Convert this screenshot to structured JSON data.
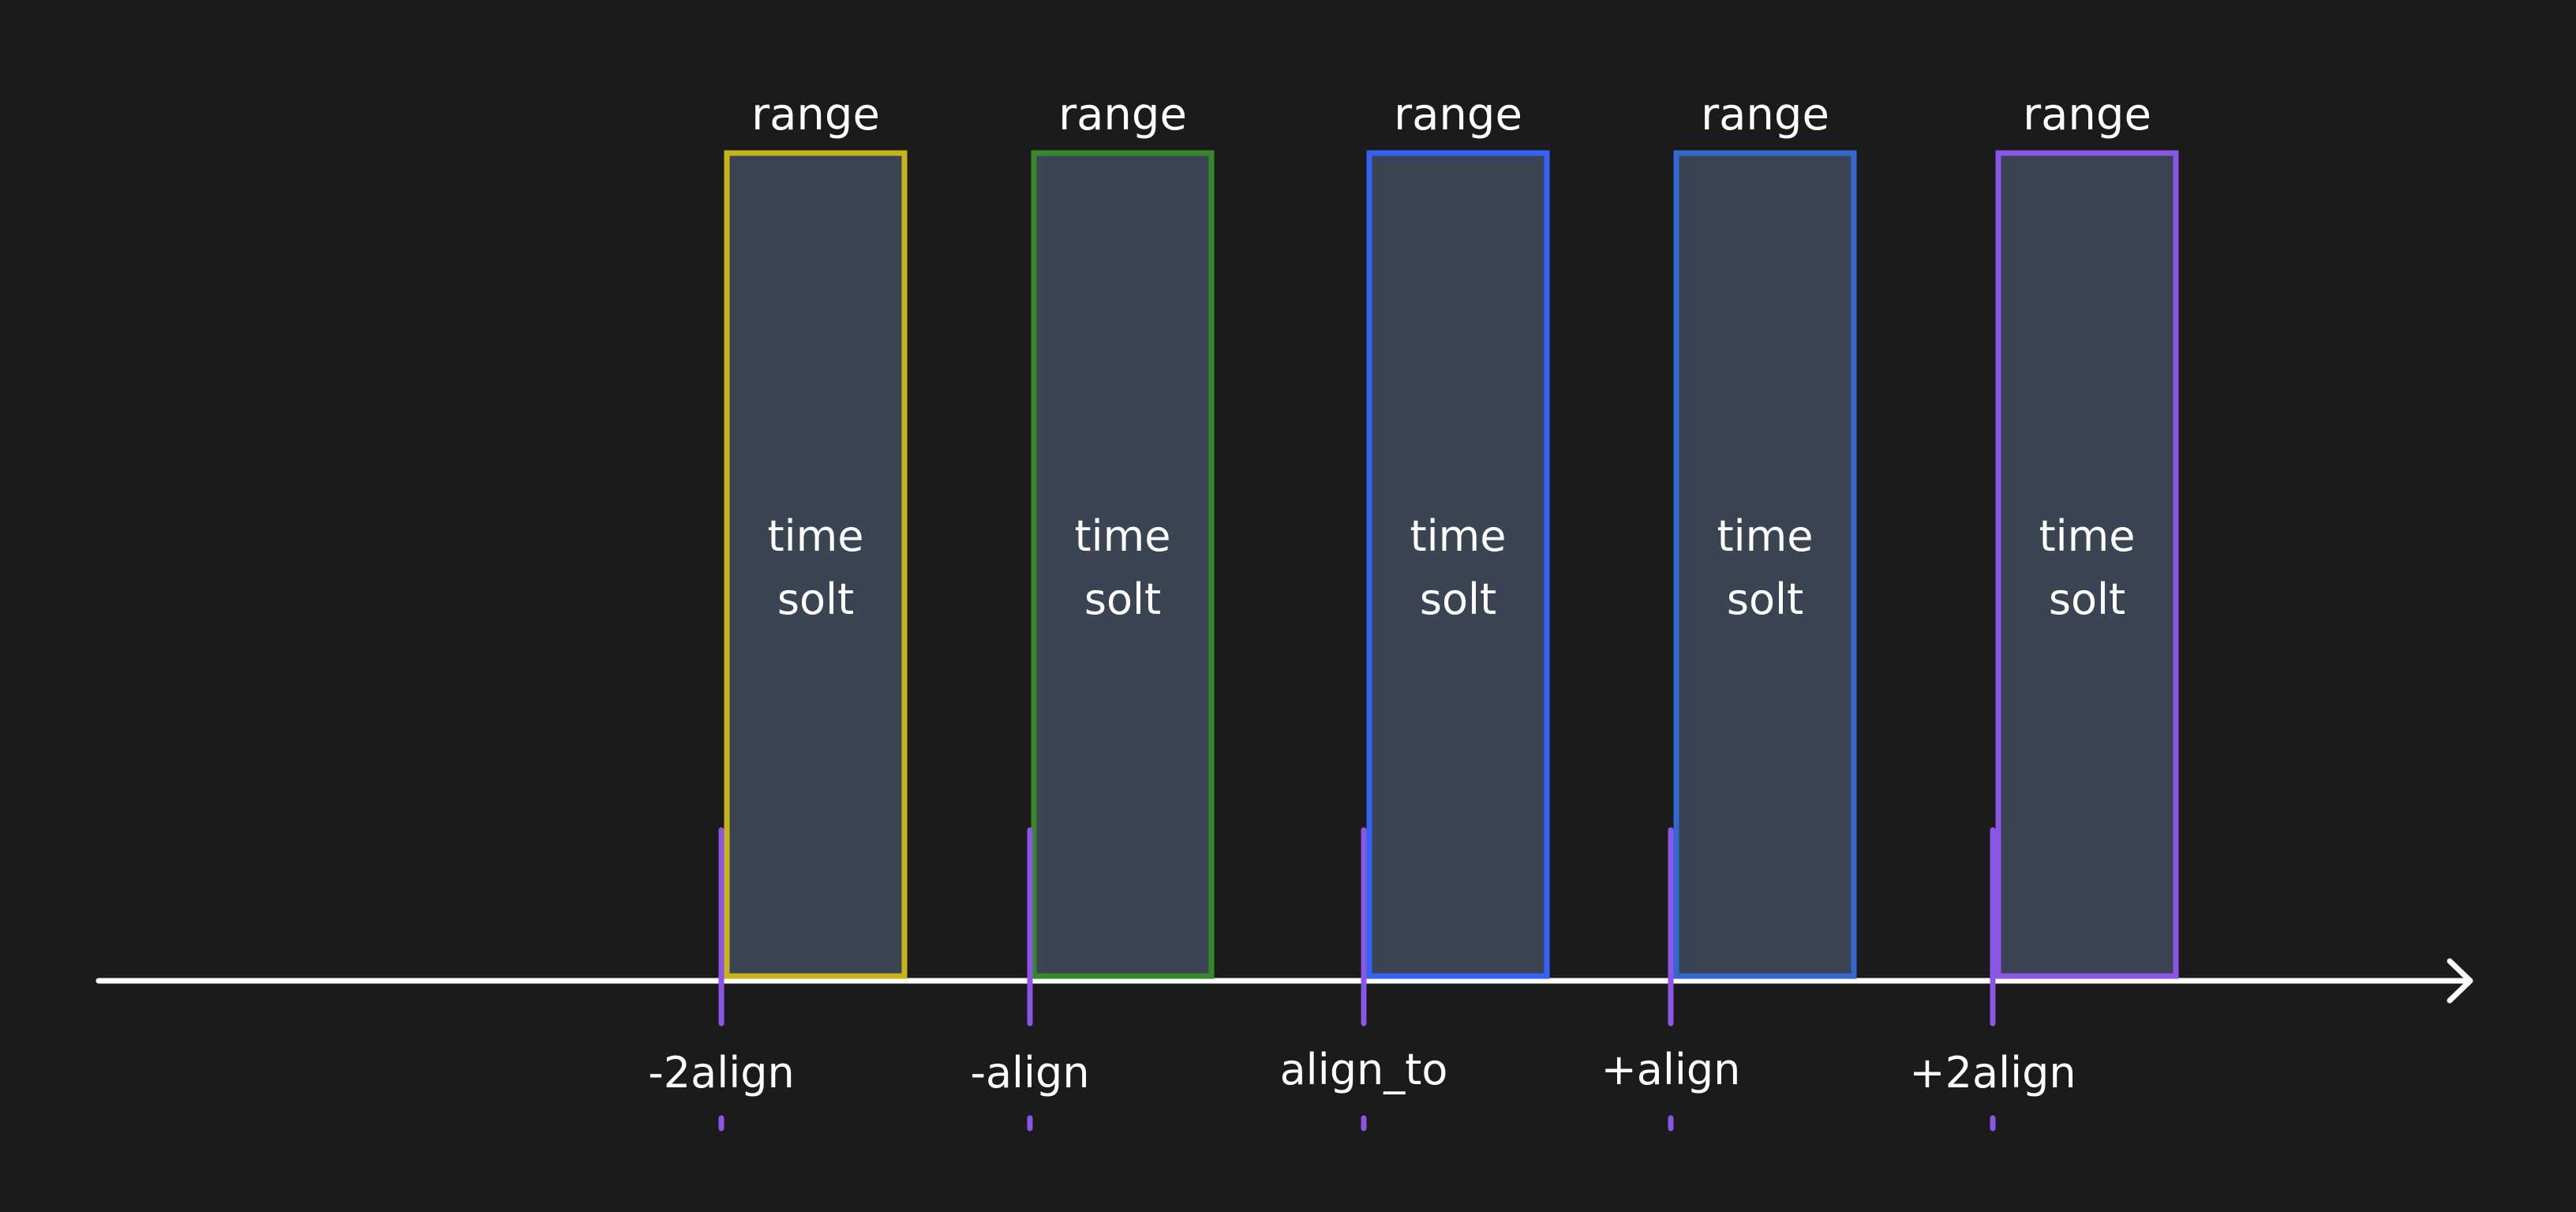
{
  "slots": [
    {
      "range_label": "range",
      "line1": "time",
      "line2": "solt",
      "tick_label": "-2align",
      "color": "#c8b41a"
    },
    {
      "range_label": "range",
      "line1": "time",
      "line2": "solt",
      "tick_label": "-align",
      "color": "#37872d"
    },
    {
      "range_label": "range",
      "line1": "time",
      "line2": "solt",
      "tick_label": "align_to",
      "color": "#3461f6"
    },
    {
      "range_label": "range",
      "line1": "time",
      "line2": "solt",
      "tick_label": "+align",
      "color": "#3268cf"
    },
    {
      "range_label": "range",
      "line1": "time",
      "line2": "solt",
      "tick_label": "+2align",
      "color": "#8b55e6"
    }
  ],
  "colors": {
    "background": "#1b1b1b",
    "slot_fill": "#3b4452",
    "axis": "#ffffff",
    "tick": "#8b55e6"
  }
}
